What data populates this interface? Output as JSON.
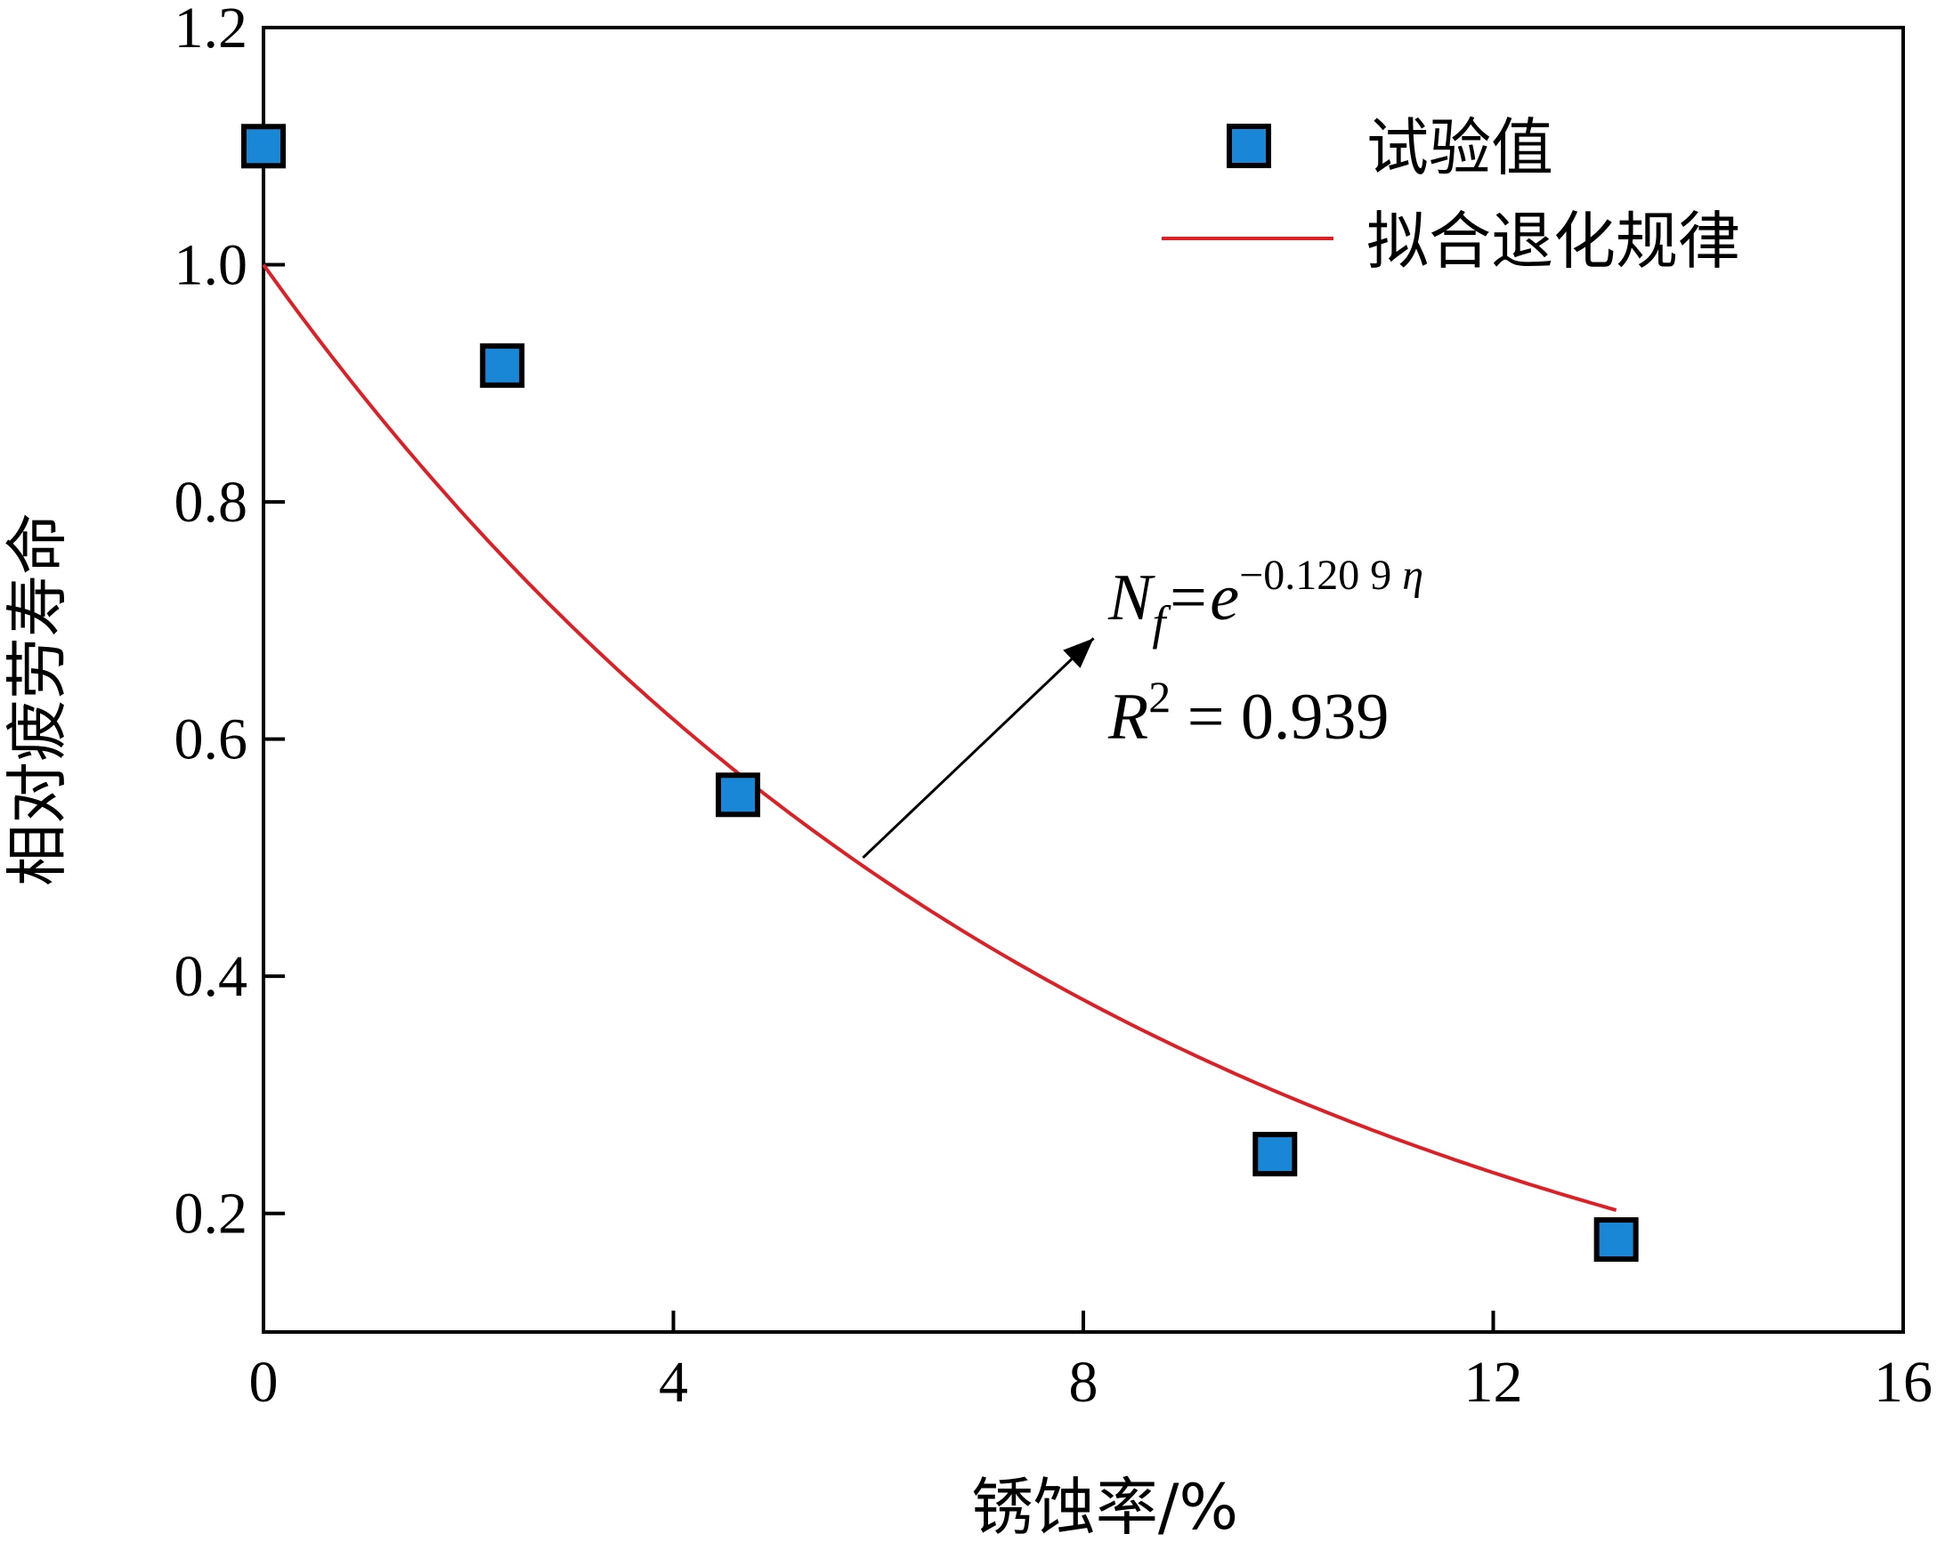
{
  "chart_data": {
    "type": "scatter",
    "xlabel": "锈蚀率/%",
    "ylabel": "相对疲劳寿命",
    "xlim": [
      0,
      16
    ],
    "ylim": [
      0.1,
      1.2
    ],
    "x_ticks": [
      0,
      4,
      8,
      12,
      16
    ],
    "x_tick_labels": [
      "0",
      "4",
      "8",
      "12",
      "16"
    ],
    "y_ticks": [
      0.2,
      0.4,
      0.6,
      0.8,
      1.0,
      1.2
    ],
    "y_tick_labels": [
      "0.2",
      "0.4",
      "0.6",
      "0.8",
      "1.0",
      "1.2"
    ],
    "grid": false,
    "legend_position": "top-right",
    "series": [
      {
        "name": "试验值",
        "kind": "scatter",
        "marker": "square",
        "color": "#1a86d6",
        "x": [
          0.0,
          2.33,
          4.63,
          9.87,
          13.2
        ],
        "y": [
          1.1,
          0.915,
          0.553,
          0.25,
          0.178
        ]
      },
      {
        "name": "拟合退化规律",
        "kind": "line",
        "color": "#dd1f26",
        "function": "exp(-0.1209*x)",
        "x_range": [
          0,
          13.2
        ]
      }
    ],
    "annotation": {
      "equation_lhs": "N",
      "equation_lhs_sub": "f",
      "equation_eq": "=e",
      "equation_exp": "−0.120 9",
      "equation_var": "η",
      "r2_label": "R",
      "r2_sup": "2",
      "r2_value": " = 0.939",
      "arrow_from": [
        5.85,
        0.5
      ],
      "arrow_to": [
        8.1,
        0.685
      ]
    }
  }
}
